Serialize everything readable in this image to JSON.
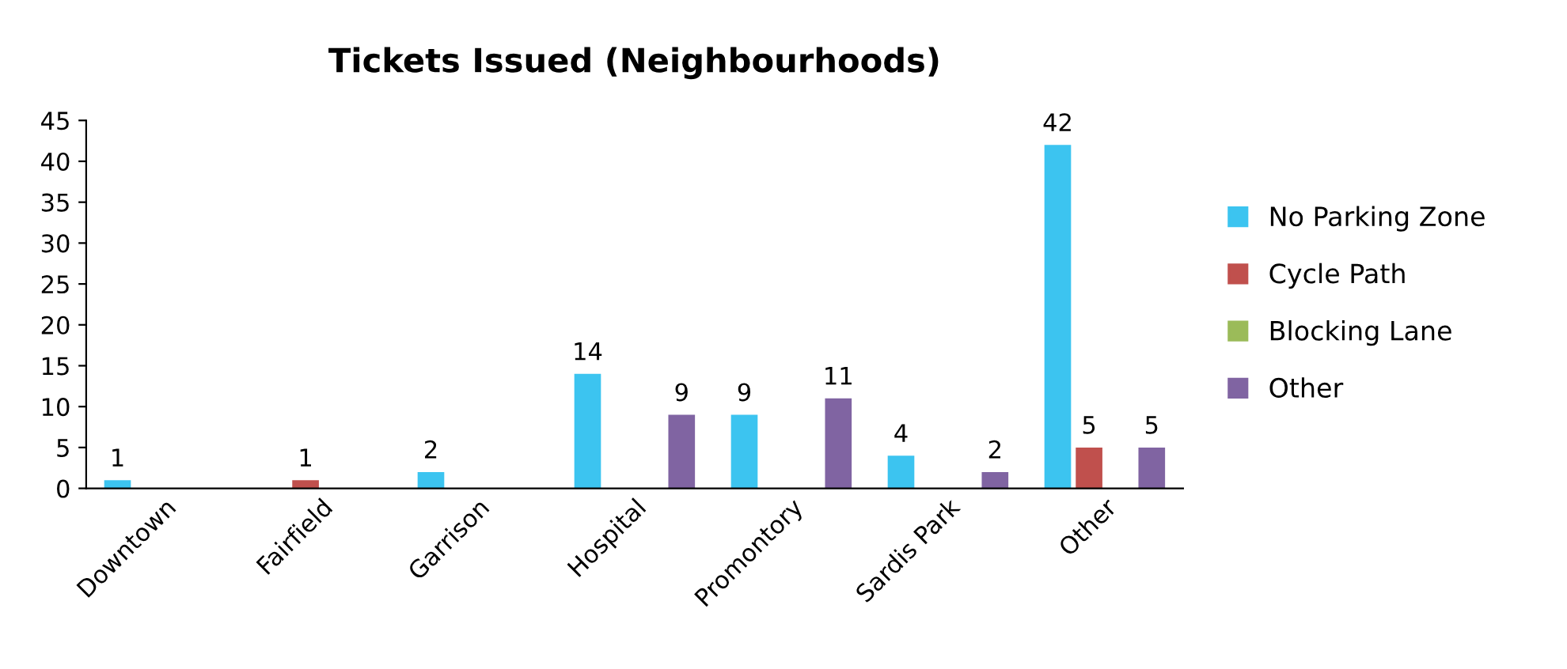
{
  "chart_data": {
    "type": "bar",
    "title": "Tickets Issued (Neighbourhoods)",
    "categories": [
      "Downtown",
      "Fairfield",
      "Garrison",
      "Hospital",
      "Promontory",
      "Sardis Park",
      "Other"
    ],
    "series": [
      {
        "name": "No Parking Zone",
        "color": "#3cc4f0",
        "values": [
          1,
          null,
          2,
          14,
          9,
          4,
          42
        ]
      },
      {
        "name": "Cycle Path",
        "color": "#c0504d",
        "values": [
          null,
          1,
          null,
          null,
          null,
          null,
          5
        ]
      },
      {
        "name": "Blocking Lane",
        "color": "#9bbb59",
        "values": [
          null,
          null,
          null,
          null,
          null,
          null,
          null
        ]
      },
      {
        "name": "Other",
        "color": "#8064a2",
        "values": [
          null,
          null,
          null,
          9,
          11,
          2,
          5
        ]
      }
    ],
    "ylim": [
      0,
      45
    ],
    "yticks": [
      0,
      5,
      10,
      15,
      20,
      25,
      30,
      35,
      40,
      45
    ],
    "grid": false,
    "legend": "right",
    "data_labels": true
  }
}
